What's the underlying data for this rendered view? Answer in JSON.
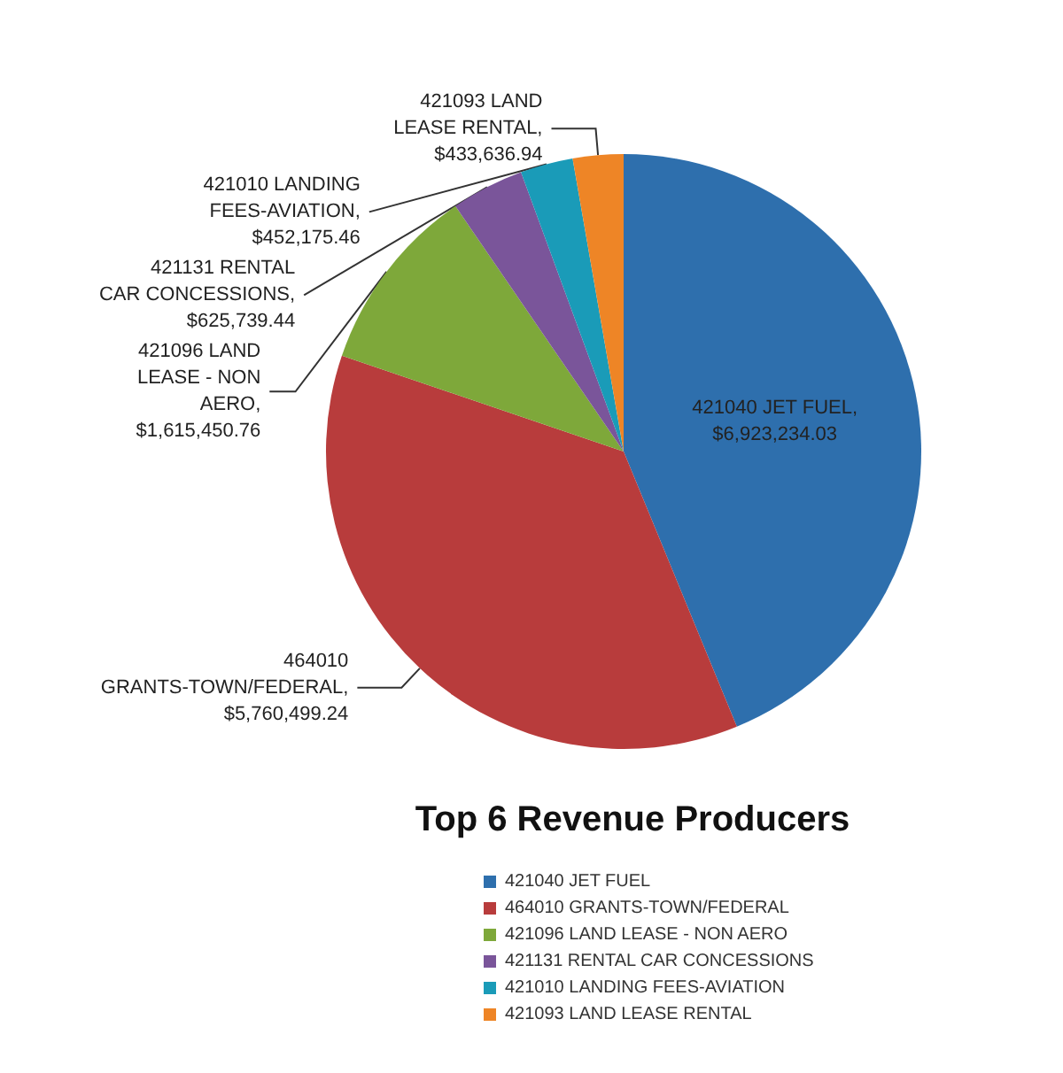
{
  "chart_data": {
    "type": "pie",
    "title": "Top 6 Revenue Producers",
    "categories": [
      "421040 JET FUEL",
      "464010 GRANTS-TOWN/FEDERAL",
      "421096 LAND LEASE - NON AERO",
      "421131 RENTAL CAR CONCESSIONS",
      "421010 LANDING FEES-AVIATION",
      "421093 LAND LEASE RENTAL"
    ],
    "values": [
      6923234.03,
      5760499.24,
      1615450.76,
      625739.44,
      452175.46,
      433636.94
    ],
    "value_labels": [
      "421040 JET FUEL, $6,923,234.03",
      "464010 GRANTS-TOWN/FEDERAL, $5,760,499.24",
      "421096 LAND LEASE - NON AERO, $1,615,450.76",
      "421131 RENTAL CAR CONCESSIONS, $625,739.44",
      "421010 LANDING FEES-AVIATION, $452,175.46",
      "421093 LAND LEASE RENTAL, $433,636.94"
    ],
    "colors": [
      "#2e6fad",
      "#b83c3c",
      "#7ea83a",
      "#7a559a",
      "#1a9bb8",
      "#ee8526"
    ],
    "legend": "bottom"
  }
}
